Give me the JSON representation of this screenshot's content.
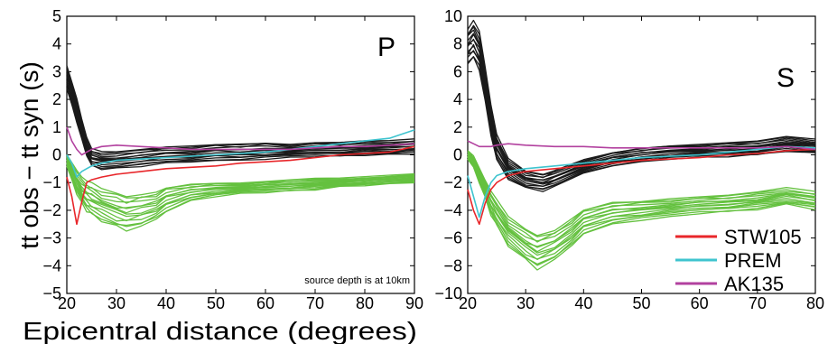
{
  "chart_data": [
    {
      "type": "line",
      "panel_label": "P",
      "xlabel": "Epicentral distance (degrees)",
      "ylabel": "tt obs − tt syn (s)",
      "xlim": [
        20,
        90
      ],
      "ylim": [
        -5,
        5
      ],
      "xticks": [
        "20",
        "30",
        "40",
        "50",
        "60",
        "70",
        "80",
        "90"
      ],
      "yticks": [
        "5",
        "4",
        "3",
        "2",
        "1",
        "0",
        "−1",
        "−2",
        "−3",
        "−4",
        "−5"
      ],
      "annotation": "source depth is at 10km",
      "grid": false,
      "series": [
        {
          "name": "STW105",
          "color": "#e8262a",
          "x": [
            20,
            21,
            22,
            23,
            24,
            25,
            27,
            30,
            35,
            40,
            45,
            50,
            55,
            60,
            65,
            70,
            75,
            80,
            85,
            90
          ],
          "y": [
            -0.8,
            -1.5,
            -2.5,
            -1.7,
            -1.0,
            -0.9,
            -0.8,
            -0.7,
            -0.6,
            -0.5,
            -0.45,
            -0.4,
            -0.3,
            -0.25,
            -0.2,
            -0.1,
            0.0,
            0.05,
            0.1,
            0.3
          ]
        },
        {
          "name": "PREM",
          "color": "#3fc4cf",
          "x": [
            20,
            21,
            22,
            23,
            24,
            25,
            27,
            30,
            35,
            40,
            45,
            50,
            55,
            60,
            65,
            70,
            75,
            80,
            85,
            90
          ],
          "y": [
            0.0,
            -0.3,
            -0.8,
            -0.6,
            -0.5,
            -0.4,
            -0.3,
            -0.2,
            -0.15,
            -0.1,
            -0.05,
            0.0,
            0.05,
            0.1,
            0.2,
            0.3,
            0.4,
            0.5,
            0.6,
            0.9
          ]
        },
        {
          "name": "AK135",
          "color": "#b2419f",
          "x": [
            20,
            21,
            22,
            23,
            24,
            25,
            27,
            30,
            35,
            40,
            45,
            50,
            55,
            60,
            65,
            70,
            75,
            80,
            85,
            90
          ],
          "y": [
            1.0,
            0.5,
            0.2,
            0.0,
            0.1,
            0.2,
            0.3,
            0.35,
            0.3,
            0.25,
            0.2,
            0.2,
            0.2,
            0.2,
            0.2,
            0.25,
            0.3,
            0.3,
            0.35,
            0.4
          ]
        }
      ],
      "bands": [
        {
          "color": "#1a1a1a",
          "count": 14,
          "x": [
            20,
            21,
            22,
            23,
            24,
            25,
            27,
            30,
            35,
            40,
            45,
            50,
            55,
            60,
            65,
            70,
            75,
            80,
            85,
            90
          ],
          "y": [
            2.8,
            2.2,
            1.6,
            0.9,
            0.3,
            -0.1,
            -0.2,
            -0.2,
            -0.1,
            0.0,
            0.05,
            0.1,
            0.1,
            0.15,
            0.15,
            0.2,
            0.2,
            0.25,
            0.25,
            0.3
          ],
          "spread": [
            0.4,
            0.4,
            0.4,
            0.35,
            0.3,
            0.3,
            0.3,
            0.3,
            0.3,
            0.3,
            0.3,
            0.3,
            0.3,
            0.3,
            0.25,
            0.25,
            0.25,
            0.25,
            0.25,
            0.25
          ]
        },
        {
          "color": "#64c13f",
          "count": 14,
          "x": [
            20,
            21,
            22,
            23,
            24,
            25,
            27,
            30,
            32,
            35,
            38,
            40,
            45,
            50,
            55,
            60,
            65,
            70,
            75,
            80,
            85,
            90
          ],
          "y": [
            -0.2,
            -0.6,
            -1.0,
            -1.3,
            -1.5,
            -1.6,
            -1.8,
            -2.0,
            -2.1,
            -2.0,
            -1.8,
            -1.6,
            -1.35,
            -1.25,
            -1.2,
            -1.15,
            -1.1,
            -1.05,
            -1.0,
            -0.95,
            -0.9,
            -0.85
          ],
          "spread": [
            0.2,
            0.3,
            0.4,
            0.45,
            0.5,
            0.55,
            0.55,
            0.6,
            0.6,
            0.6,
            0.5,
            0.45,
            0.3,
            0.25,
            0.2,
            0.2,
            0.2,
            0.2,
            0.15,
            0.15,
            0.15,
            0.15
          ]
        }
      ]
    },
    {
      "type": "line",
      "panel_label": "S",
      "xlabel": "",
      "ylabel": "",
      "xlim": [
        20,
        80
      ],
      "ylim": [
        -10,
        10
      ],
      "xticks": [
        "20",
        "30",
        "40",
        "50",
        "60",
        "70",
        "80"
      ],
      "yticks": [
        "10",
        "8",
        "6",
        "4",
        "2",
        "0",
        "−2",
        "−4",
        "−6",
        "−8",
        "−10"
      ],
      "grid": false,
      "legend_position": "bottom-right",
      "series": [
        {
          "name": "STW105",
          "color": "#e8262a",
          "x": [
            20,
            21,
            22,
            23,
            24,
            25,
            27,
            30,
            35,
            40,
            45,
            50,
            55,
            60,
            65,
            70,
            75,
            80
          ],
          "y": [
            -2.5,
            -4.0,
            -5.0,
            -3.5,
            -2.5,
            -2.0,
            -1.5,
            -1.2,
            -1.0,
            -0.8,
            -0.6,
            -0.4,
            -0.3,
            -0.2,
            0.0,
            0.1,
            0.3,
            0.4
          ]
        },
        {
          "name": "PREM",
          "color": "#3fc4cf",
          "x": [
            20,
            21,
            22,
            23,
            24,
            25,
            27,
            30,
            35,
            40,
            45,
            50,
            55,
            60,
            65,
            70,
            75,
            80
          ],
          "y": [
            -1.5,
            -3.0,
            -4.5,
            -3.0,
            -2.0,
            -1.5,
            -1.2,
            -1.0,
            -0.8,
            -0.6,
            -0.4,
            -0.2,
            -0.1,
            0.0,
            0.2,
            0.4,
            0.6,
            0.5
          ]
        },
        {
          "name": "AK135",
          "color": "#b2419f",
          "x": [
            20,
            21,
            22,
            23,
            24,
            25,
            27,
            30,
            35,
            40,
            45,
            50,
            55,
            60,
            65,
            70,
            75,
            80
          ],
          "y": [
            1.0,
            0.8,
            0.6,
            0.6,
            0.6,
            0.7,
            0.8,
            0.7,
            0.6,
            0.6,
            0.5,
            0.5,
            0.5,
            0.5,
            0.5,
            0.5,
            0.6,
            0.4
          ]
        }
      ],
      "bands": [
        {
          "color": "#1a1a1a",
          "count": 14,
          "x": [
            20,
            21,
            22,
            23,
            24,
            25,
            27,
            30,
            33,
            35,
            40,
            45,
            50,
            55,
            60,
            65,
            70,
            75,
            80
          ],
          "y": [
            7.8,
            8.3,
            7.5,
            5.0,
            2.5,
            0.5,
            -1.0,
            -1.8,
            -2.0,
            -1.7,
            -0.8,
            -0.3,
            0.0,
            0.2,
            0.3,
            0.4,
            0.5,
            0.8,
            0.6
          ],
          "spread": [
            1.2,
            1.3,
            1.3,
            1.2,
            1.0,
            0.9,
            0.7,
            0.6,
            0.6,
            0.6,
            0.5,
            0.5,
            0.5,
            0.5,
            0.5,
            0.5,
            0.5,
            0.5,
            0.5
          ]
        },
        {
          "color": "#64c13f",
          "count": 14,
          "x": [
            20,
            21,
            22,
            23,
            24,
            25,
            27,
            30,
            32,
            35,
            38,
            40,
            45,
            50,
            55,
            60,
            65,
            70,
            75,
            80
          ],
          "y": [
            0.0,
            -0.5,
            -1.5,
            -2.5,
            -3.5,
            -4.2,
            -5.5,
            -6.5,
            -7.0,
            -6.5,
            -5.5,
            -4.8,
            -4.2,
            -4.0,
            -3.8,
            -3.6,
            -3.5,
            -3.3,
            -3.0,
            -3.3
          ],
          "spread": [
            0.3,
            0.4,
            0.5,
            0.6,
            0.8,
            0.9,
            1.0,
            1.1,
            1.2,
            1.1,
            1.0,
            0.9,
            0.8,
            0.7,
            0.7,
            0.6,
            0.6,
            0.6,
            0.6,
            0.6
          ]
        }
      ]
    }
  ]
}
